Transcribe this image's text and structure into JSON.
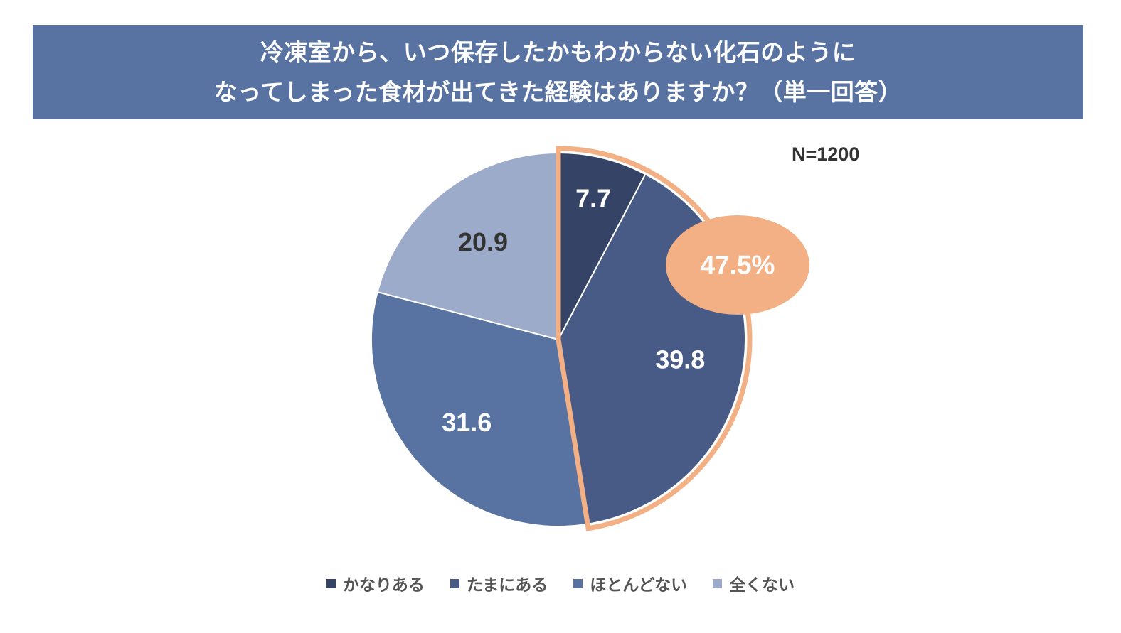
{
  "title": {
    "line1": "冷凍室から、いつ保存したかもわからない化石のように",
    "line2": "なってしまった食材が出てきた経験はありますか？（単一回答）"
  },
  "sample_size": "N=1200",
  "highlight": {
    "label": "47.5%",
    "fill": "#f2b084",
    "outline": "#f2b084"
  },
  "colors": {
    "banner": "#5872a2",
    "separator": "#ffffff"
  },
  "chart_data": {
    "type": "pie",
    "title": "冷凍室から、いつ保存したかもわからない化石のようになってしまった食材が出てきた経験はありますか？（単一回答）",
    "start_angle_deg": 0,
    "direction": "clockwise",
    "legend_position": "bottom",
    "slices": [
      {
        "label": "かなりある",
        "value": 7.7,
        "display": "7.7",
        "color": "#354466",
        "label_color": "#ffffff"
      },
      {
        "label": "たまにある",
        "value": 39.8,
        "display": "39.8",
        "color": "#485b87",
        "label_color": "#ffffff"
      },
      {
        "label": "ほとんどない",
        "value": 31.6,
        "display": "31.6",
        "color": "#5872a2",
        "label_color": "#ffffff"
      },
      {
        "label": "全くない",
        "value": 20.9,
        "display": "20.9",
        "color": "#9dabca",
        "label_color": "#333333"
      }
    ],
    "highlighted_slices": [
      "かなりある",
      "たまにある"
    ],
    "highlight_total": 47.5
  }
}
